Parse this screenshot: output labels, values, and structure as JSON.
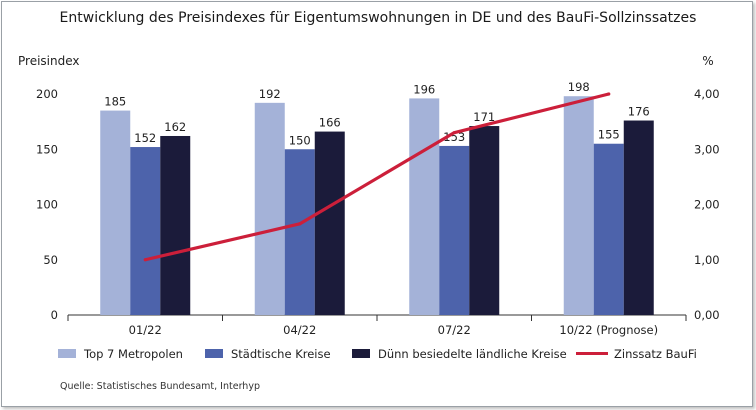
{
  "chart_data": {
    "type": "bar",
    "title": "Entwicklung des Preisindexes für Eigentumswohnungen in DE und des BauFi-Sollzinssatzes",
    "ylabel": "Preisindex",
    "y2label": "%",
    "categories": [
      "01/22",
      "04/22",
      "07/22",
      "10/22 (Prognose)"
    ],
    "ylim": [
      0,
      200
    ],
    "y2lim": [
      0,
      4
    ],
    "yticks": [
      "0",
      "50",
      "100",
      "150",
      "200"
    ],
    "y2ticks": [
      "0,00",
      "1,00",
      "2,00",
      "3,00",
      "4,00"
    ],
    "series": [
      {
        "name": "Top 7 Metropolen",
        "values": [
          185,
          192,
          196,
          198
        ],
        "color": "#a4b2d8"
      },
      {
        "name": "Städtische Kreise",
        "values": [
          152,
          150,
          153,
          155
        ],
        "color": "#4d63ab"
      },
      {
        "name": "Dünn besiedelte ländliche Kreise",
        "values": [
          162,
          166,
          171,
          176
        ],
        "color": "#1b1b3a"
      }
    ],
    "line_series": {
      "name": "Zinssatz BauFi",
      "axis": "right",
      "values": [
        1.0,
        1.65,
        3.3,
        4.0
      ],
      "color": "#cc1f3a"
    },
    "legend_position": "bottom",
    "grid": false
  },
  "source": "Quelle: Statistisches Bundesamt, Interhyp"
}
